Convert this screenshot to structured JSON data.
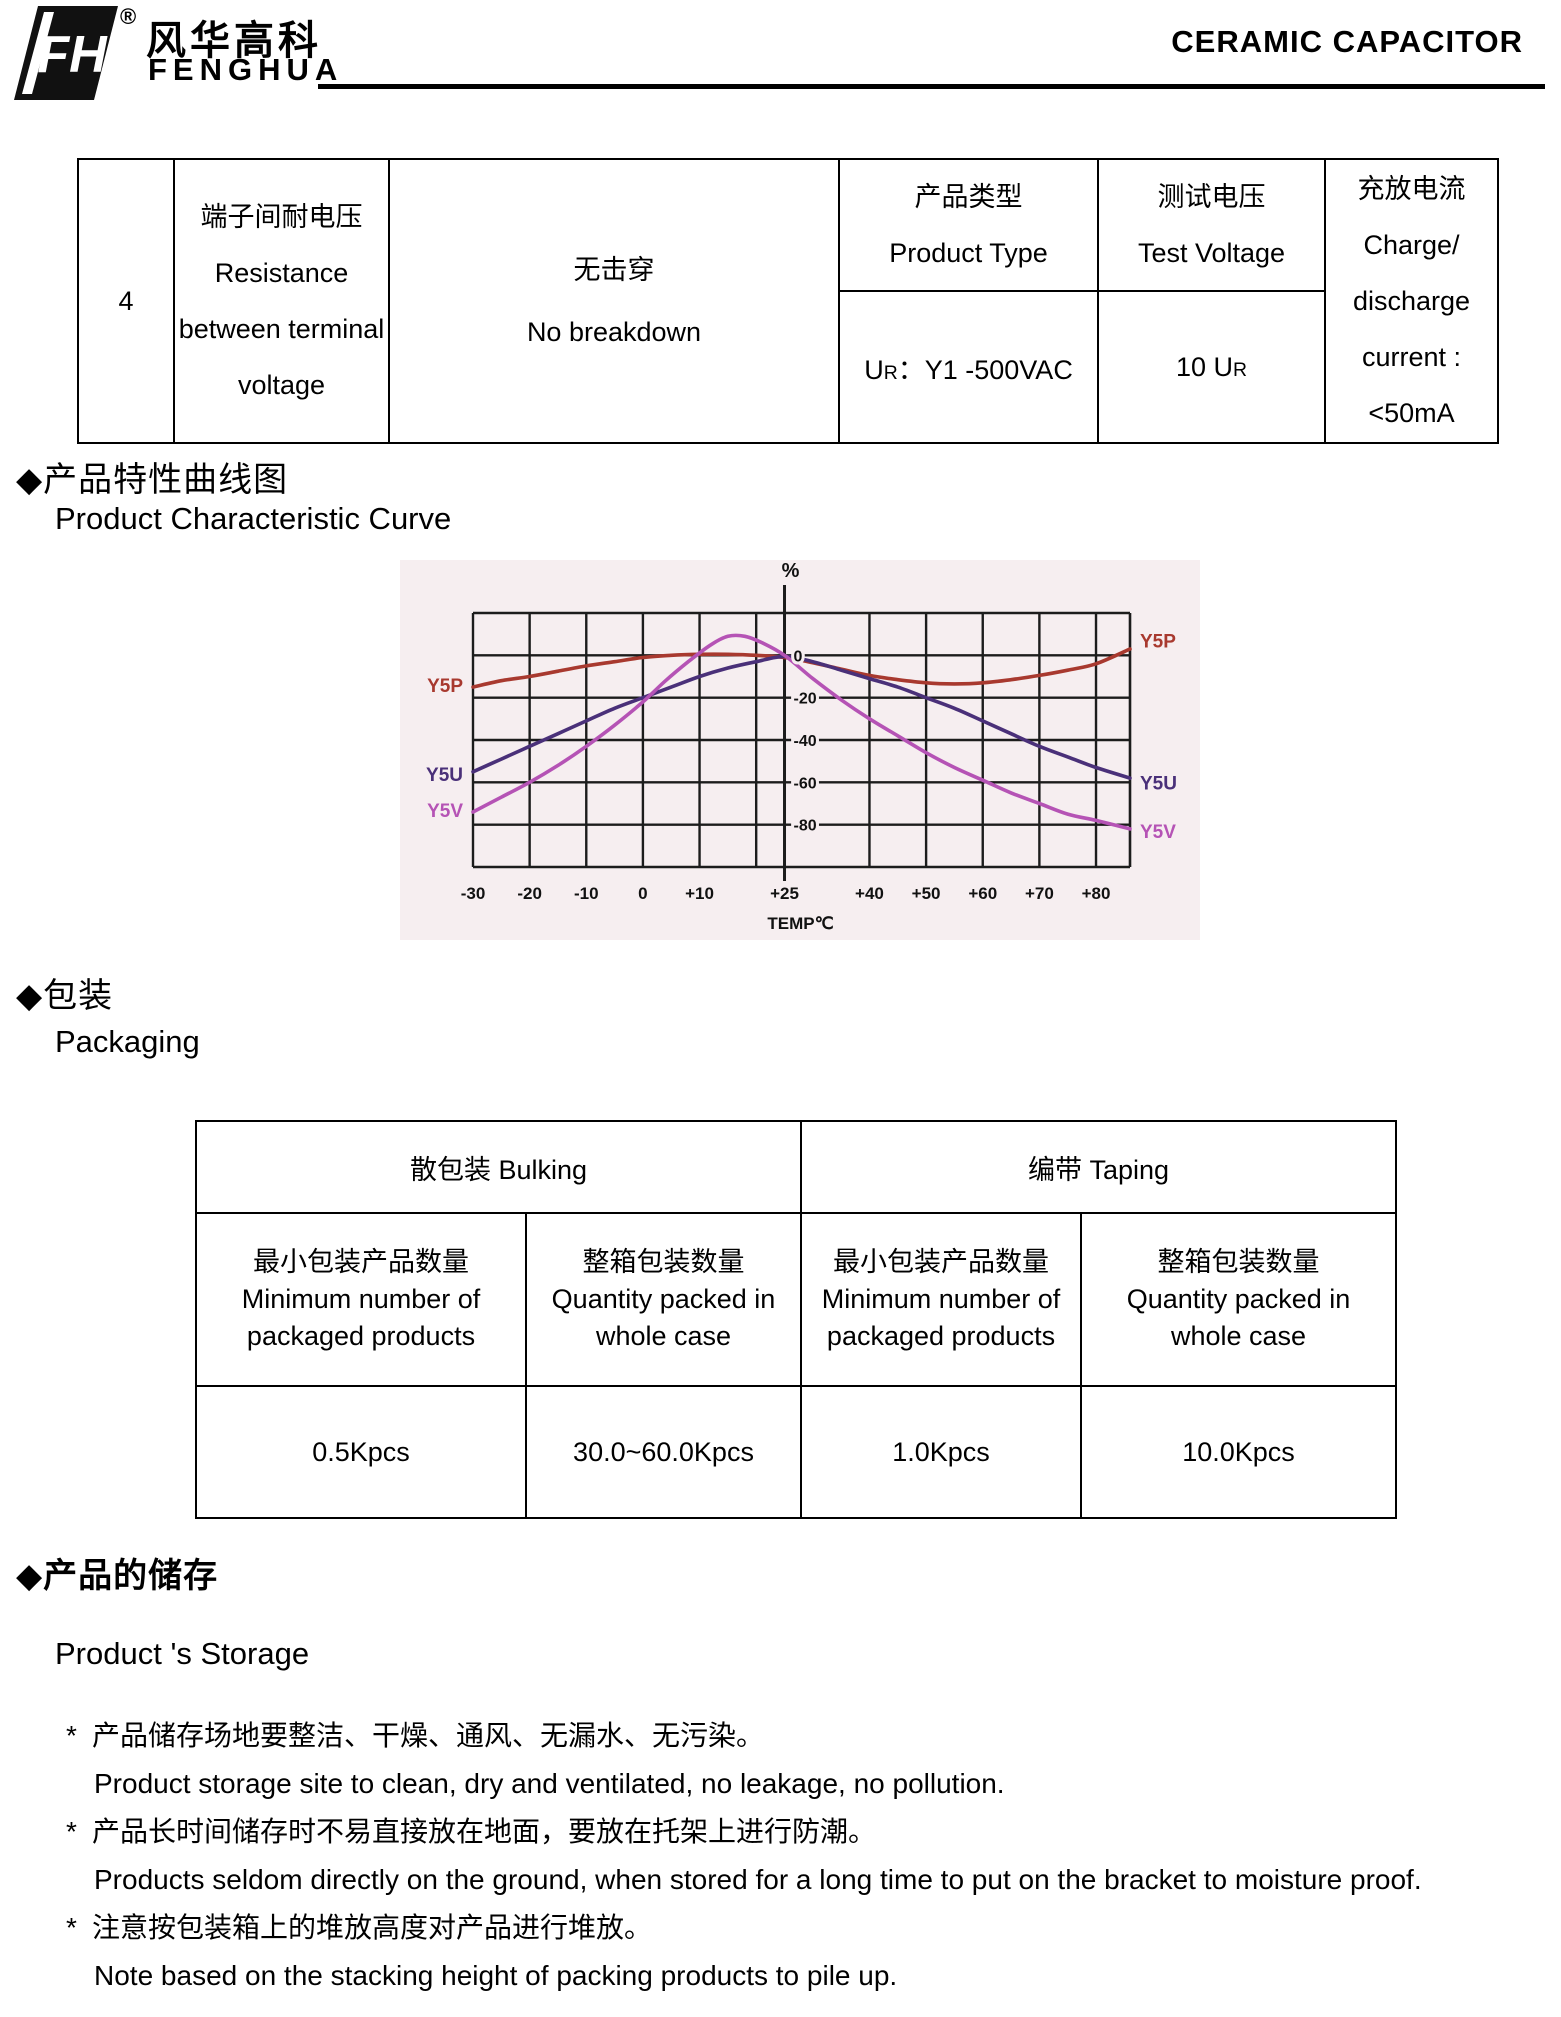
{
  "header": {
    "registered": "®",
    "company_zh": "风华高科",
    "company_en": "FENGHUA",
    "logo_monogram": "FH",
    "title": "CERAMIC CAPACITOR"
  },
  "spec_table": {
    "row_no": "4",
    "item_lines": [
      "端子间耐电压",
      "Resistance",
      "between terminal",
      "voltage"
    ],
    "result_lines": [
      "无击穿",
      "No breakdown"
    ],
    "product_type_header": [
      "产品类型",
      "Product Type"
    ],
    "product_type_value": {
      "pre": "U",
      "sub": "R",
      "post": "：Y1 -500VAC"
    },
    "test_voltage_header": [
      "测试电压",
      "Test Voltage"
    ],
    "test_voltage_value": {
      "pre": "10 U",
      "sub": "R",
      "post": ""
    },
    "charge_lines": [
      "充放电流",
      "Charge/",
      "discharge",
      "current :",
      "<50mA"
    ]
  },
  "sections": {
    "marker": "◆",
    "curve_zh": "产品特性曲线图",
    "curve_en": "Product Characteristic Curve",
    "packaging_zh": "包装",
    "packaging_en": "Packaging",
    "storage_zh": "产品的储存",
    "storage_en": "Product 's Storage"
  },
  "chart_data": {
    "type": "line",
    "title": "Product Characteristic Curve",
    "xlabel": "TEMP℃",
    "ylabel": "%",
    "x_range": [
      -30,
      86
    ],
    "y_range": [
      -100,
      20
    ],
    "x_gridlines": [
      -30,
      -20,
      -10,
      0,
      10,
      20,
      40,
      50,
      60,
      70,
      80
    ],
    "y_gridlines": [
      20,
      0,
      -20,
      -40,
      -60,
      -80,
      -100
    ],
    "axis_x": 25,
    "background": "#f6eef0",
    "grid_color": "#1c1c1c",
    "legend_position": "curve-ends-left-and-right",
    "x_ticks": [
      {
        "v": -30,
        "label": "-30"
      },
      {
        "v": -20,
        "label": "-20"
      },
      {
        "v": -10,
        "label": "-10"
      },
      {
        "v": 0,
        "label": "0"
      },
      {
        "v": 10,
        "label": "+10"
      },
      {
        "v": 25,
        "label": "+25"
      },
      {
        "v": 40,
        "label": "+40"
      },
      {
        "v": 50,
        "label": "+50"
      },
      {
        "v": 60,
        "label": "+60"
      },
      {
        "v": 70,
        "label": "+70"
      },
      {
        "v": 80,
        "label": "+80"
      }
    ],
    "y_ticks": [
      {
        "v": 0,
        "label": "0"
      },
      {
        "v": -20,
        "label": "-20"
      },
      {
        "v": -40,
        "label": "-40"
      },
      {
        "v": -60,
        "label": "-60"
      },
      {
        "v": -80,
        "label": "-80"
      }
    ],
    "series": [
      {
        "name": "Y5P",
        "color": "#a8392f",
        "left_label_y": -14,
        "right_label_y": 7,
        "points": [
          [
            -30,
            -15
          ],
          [
            -25,
            -12
          ],
          [
            -20,
            -10
          ],
          [
            -15,
            -7.5
          ],
          [
            -10,
            -5
          ],
          [
            -5,
            -3
          ],
          [
            0,
            -1
          ],
          [
            5,
            0
          ],
          [
            10,
            0.5
          ],
          [
            15,
            0.5
          ],
          [
            20,
            0
          ],
          [
            25,
            -1
          ],
          [
            30,
            -3.5
          ],
          [
            35,
            -6.5
          ],
          [
            40,
            -9.5
          ],
          [
            45,
            -11.5
          ],
          [
            50,
            -13
          ],
          [
            55,
            -13.5
          ],
          [
            60,
            -13
          ],
          [
            65,
            -11.5
          ],
          [
            70,
            -9.5
          ],
          [
            75,
            -7
          ],
          [
            80,
            -4
          ],
          [
            86,
            3
          ]
        ]
      },
      {
        "name": "Y5U",
        "color": "#4a3079",
        "left_label_y": -56,
        "right_label_y": -60,
        "points": [
          [
            -30,
            -55
          ],
          [
            -25,
            -49
          ],
          [
            -20,
            -43
          ],
          [
            -15,
            -37
          ],
          [
            -10,
            -31
          ],
          [
            -5,
            -25
          ],
          [
            0,
            -20
          ],
          [
            5,
            -15
          ],
          [
            10,
            -10
          ],
          [
            15,
            -6
          ],
          [
            20,
            -3
          ],
          [
            25,
            -0.5
          ],
          [
            30,
            -3
          ],
          [
            35,
            -7
          ],
          [
            40,
            -11
          ],
          [
            45,
            -15
          ],
          [
            50,
            -20
          ],
          [
            55,
            -25
          ],
          [
            60,
            -31
          ],
          [
            65,
            -37
          ],
          [
            70,
            -43
          ],
          [
            75,
            -48
          ],
          [
            80,
            -53
          ],
          [
            86,
            -58
          ]
        ]
      },
      {
        "name": "Y5V",
        "color": "#b553b5",
        "left_label_y": -73,
        "right_label_y": -83,
        "points": [
          [
            -30,
            -74
          ],
          [
            -25,
            -67
          ],
          [
            -20,
            -60
          ],
          [
            -15,
            -52
          ],
          [
            -10,
            -43
          ],
          [
            -5,
            -33
          ],
          [
            0,
            -22
          ],
          [
            4,
            -12
          ],
          [
            8,
            -3
          ],
          [
            12,
            5
          ],
          [
            15,
            9
          ],
          [
            18,
            9
          ],
          [
            21,
            6
          ],
          [
            25,
            0
          ],
          [
            30,
            -11
          ],
          [
            35,
            -21
          ],
          [
            40,
            -30
          ],
          [
            45,
            -38
          ],
          [
            50,
            -46
          ],
          [
            55,
            -53
          ],
          [
            60,
            -59
          ],
          [
            65,
            -65
          ],
          [
            70,
            -70
          ],
          [
            75,
            -75
          ],
          [
            80,
            -78
          ],
          [
            86,
            -82
          ]
        ]
      }
    ]
  },
  "packaging_table": {
    "groups": [
      {
        "label": "散包装 Bulking"
      },
      {
        "label": "编带 Taping"
      }
    ],
    "columns": [
      {
        "zh": "最小包装产品数量",
        "en1": "Minimum number of",
        "en2": "packaged products",
        "value": "0.5Kpcs"
      },
      {
        "zh": "整箱包装数量",
        "en1": "Quantity packed in",
        "en2": "whole case",
        "value": "30.0~60.0Kpcs"
      },
      {
        "zh": "最小包装产品数量",
        "en1": "Minimum number of",
        "en2": "packaged products",
        "value": "1.0Kpcs"
      },
      {
        "zh": "整箱包装数量",
        "en1": "Quantity packed in",
        "en2": "whole case",
        "value": "10.0Kpcs"
      }
    ]
  },
  "storage_notes": [
    {
      "marker": "*",
      "zh": "产品储存场地要整洁、干燥、通风、无漏水、无污染。",
      "en": "Product storage site to clean, dry and ventilated, no leakage, no pollution."
    },
    {
      "marker": "*",
      "zh": "产品长时间储存时不易直接放在地面，要放在托架上进行防潮。",
      "en": "Products seldom directly on the ground, when stored for a long time to put on the bracket to moisture proof."
    },
    {
      "marker": "*",
      "zh": "注意按包装箱上的堆放高度对产品进行堆放。",
      "en": "Note based on the stacking height of packing products to pile up."
    }
  ]
}
